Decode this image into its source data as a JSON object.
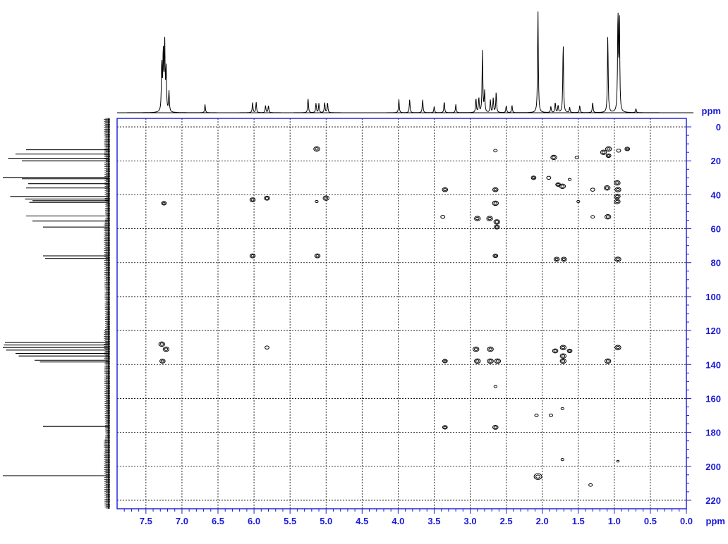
{
  "chart_data": {
    "type": "2d-nmr-hmbc",
    "x_axis": {
      "unit": "ppm",
      "range": [
        7.9,
        0.0
      ],
      "ticks": [
        "7.5",
        "7.0",
        "6.5",
        "6.0",
        "5.5",
        "5.0",
        "4.5",
        "4.0",
        "3.5",
        "3.0",
        "2.5",
        "2.0",
        "1.5",
        "1.0",
        "0.5",
        "0.0"
      ],
      "tick_values": [
        7.5,
        7.0,
        6.5,
        6.0,
        5.5,
        5.0,
        4.5,
        4.0,
        3.5,
        3.0,
        2.5,
        2.0,
        1.5,
        1.0,
        0.5,
        0.0
      ],
      "direction": "reversed"
    },
    "y_axis": {
      "unit": "ppm",
      "range": [
        -5,
        225
      ],
      "ticks": [
        "0",
        "20",
        "40",
        "60",
        "80",
        "100",
        "120",
        "140",
        "160",
        "180",
        "200",
        "220"
      ],
      "tick_values": [
        0,
        20,
        40,
        60,
        80,
        100,
        120,
        140,
        160,
        180,
        200,
        220
      ],
      "direction": "top-to-bottom"
    },
    "grid": true,
    "colors": {
      "axis": "#1a1ad6",
      "data": "#000000",
      "grid": "#000000"
    },
    "proton_projection": [
      {
        "ppm": 7.28,
        "h": 0.48
      },
      {
        "ppm": 7.26,
        "h": 0.58
      },
      {
        "ppm": 7.24,
        "h": 0.68
      },
      {
        "ppm": 7.22,
        "h": 0.42
      },
      {
        "ppm": 7.18,
        "h": 0.2
      },
      {
        "ppm": 6.68,
        "h": 0.08
      },
      {
        "ppm": 6.02,
        "h": 0.1
      },
      {
        "ppm": 5.97,
        "h": 0.1
      },
      {
        "ppm": 5.84,
        "h": 0.07
      },
      {
        "ppm": 5.8,
        "h": 0.07
      },
      {
        "ppm": 5.25,
        "h": 0.14
      },
      {
        "ppm": 5.14,
        "h": 0.09
      },
      {
        "ppm": 5.1,
        "h": 0.09
      },
      {
        "ppm": 5.02,
        "h": 0.1
      },
      {
        "ppm": 4.98,
        "h": 0.1
      },
      {
        "ppm": 3.99,
        "h": 0.13
      },
      {
        "ppm": 3.84,
        "h": 0.13
      },
      {
        "ppm": 3.66,
        "h": 0.13
      },
      {
        "ppm": 3.5,
        "h": 0.06
      },
      {
        "ppm": 3.36,
        "h": 0.11
      },
      {
        "ppm": 3.2,
        "h": 0.08
      },
      {
        "ppm": 2.92,
        "h": 0.14
      },
      {
        "ppm": 2.88,
        "h": 0.14
      },
      {
        "ppm": 2.83,
        "h": 0.6
      },
      {
        "ppm": 2.8,
        "h": 0.2
      },
      {
        "ppm": 2.72,
        "h": 0.12
      },
      {
        "ppm": 2.68,
        "h": 0.14
      },
      {
        "ppm": 2.64,
        "h": 0.2
      },
      {
        "ppm": 2.5,
        "h": 0.07
      },
      {
        "ppm": 2.42,
        "h": 0.07
      },
      {
        "ppm": 2.06,
        "h": 1.0
      },
      {
        "ppm": 1.88,
        "h": 0.06
      },
      {
        "ppm": 1.82,
        "h": 0.1
      },
      {
        "ppm": 1.78,
        "h": 0.07
      },
      {
        "ppm": 1.71,
        "h": 0.68
      },
      {
        "ppm": 1.62,
        "h": 0.05
      },
      {
        "ppm": 1.48,
        "h": 0.07
      },
      {
        "ppm": 1.3,
        "h": 0.1
      },
      {
        "ppm": 1.09,
        "h": 0.75
      },
      {
        "ppm": 0.95,
        "h": 0.96
      },
      {
        "ppm": 0.93,
        "h": 0.94
      },
      {
        "ppm": 0.7,
        "h": 0.04
      }
    ],
    "carbon_projection": [
      {
        "ppm": 13.5,
        "h": 0.78
      },
      {
        "ppm": 16.0,
        "h": 0.88
      },
      {
        "ppm": 18.5,
        "h": 0.95
      },
      {
        "ppm": 20.0,
        "h": 0.82
      },
      {
        "ppm": 29.8,
        "h": 1.0
      },
      {
        "ppm": 30.6,
        "h": 0.82
      },
      {
        "ppm": 33.5,
        "h": 0.76
      },
      {
        "ppm": 36.0,
        "h": 0.78
      },
      {
        "ppm": 41.0,
        "h": 0.93
      },
      {
        "ppm": 42.5,
        "h": 0.79
      },
      {
        "ppm": 43.5,
        "h": 0.72
      },
      {
        "ppm": 44.5,
        "h": 0.75
      },
      {
        "ppm": 52.5,
        "h": 0.78
      },
      {
        "ppm": 55.5,
        "h": 0.72
      },
      {
        "ppm": 59.0,
        "h": 0.62
      },
      {
        "ppm": 76.0,
        "h": 0.62
      },
      {
        "ppm": 77.5,
        "h": 0.6
      },
      {
        "ppm": 127.0,
        "h": 0.98
      },
      {
        "ppm": 128.5,
        "h": 0.99
      },
      {
        "ppm": 130.0,
        "h": 1.0
      },
      {
        "ppm": 131.5,
        "h": 0.97
      },
      {
        "ppm": 133.5,
        "h": 0.88
      },
      {
        "ppm": 135.0,
        "h": 0.85
      },
      {
        "ppm": 137.5,
        "h": 0.7
      },
      {
        "ppm": 138.5,
        "h": 0.65
      },
      {
        "ppm": 176.5,
        "h": 0.62
      },
      {
        "ppm": 205.5,
        "h": 1.0
      }
    ],
    "cross_peaks": [
      {
        "x": 5.13,
        "y": 13,
        "s": 1
      },
      {
        "x": 2.65,
        "y": 14,
        "s": 0.6
      },
      {
        "x": 1.84,
        "y": 18,
        "s": 1
      },
      {
        "x": 1.15,
        "y": 15,
        "s": 1
      },
      {
        "x": 1.08,
        "y": 13,
        "s": 1
      },
      {
        "x": 1.08,
        "y": 17,
        "s": 0.8
      },
      {
        "x": 0.94,
        "y": 14,
        "s": 0.7
      },
      {
        "x": 0.82,
        "y": 13,
        "s": 0.8
      },
      {
        "x": 1.52,
        "y": 18,
        "s": 0.6
      },
      {
        "x": 2.12,
        "y": 30,
        "s": 0.8
      },
      {
        "x": 1.91,
        "y": 30,
        "s": 0.7
      },
      {
        "x": 1.78,
        "y": 34,
        "s": 0.8
      },
      {
        "x": 1.72,
        "y": 35,
        "s": 1
      },
      {
        "x": 1.62,
        "y": 31,
        "s": 0.5
      },
      {
        "x": 1.3,
        "y": 37,
        "s": 0.7
      },
      {
        "x": 1.1,
        "y": 36,
        "s": 1
      },
      {
        "x": 0.96,
        "y": 33,
        "s": 1
      },
      {
        "x": 0.95,
        "y": 37,
        "s": 1
      },
      {
        "x": 0.96,
        "y": 41,
        "s": 1
      },
      {
        "x": 0.96,
        "y": 44,
        "s": 1
      },
      {
        "x": 3.35,
        "y": 37,
        "s": 0.9
      },
      {
        "x": 2.65,
        "y": 37,
        "s": 0.9
      },
      {
        "x": 2.65,
        "y": 45,
        "s": 1
      },
      {
        "x": 7.25,
        "y": 45,
        "s": 0.8
      },
      {
        "x": 6.02,
        "y": 43,
        "s": 0.9
      },
      {
        "x": 5.82,
        "y": 42,
        "s": 0.9
      },
      {
        "x": 5.0,
        "y": 42,
        "s": 1
      },
      {
        "x": 5.13,
        "y": 44,
        "s": 0.5
      },
      {
        "x": 1.5,
        "y": 44,
        "s": 0.5
      },
      {
        "x": 3.38,
        "y": 53,
        "s": 0.7
      },
      {
        "x": 2.9,
        "y": 54,
        "s": 1
      },
      {
        "x": 2.73,
        "y": 54,
        "s": 1
      },
      {
        "x": 2.63,
        "y": 56,
        "s": 1
      },
      {
        "x": 2.63,
        "y": 59,
        "s": 0.9
      },
      {
        "x": 1.09,
        "y": 53,
        "s": 1
      },
      {
        "x": 1.3,
        "y": 53,
        "s": 0.6
      },
      {
        "x": 6.02,
        "y": 76,
        "s": 0.9
      },
      {
        "x": 5.12,
        "y": 76,
        "s": 0.9
      },
      {
        "x": 2.65,
        "y": 76,
        "s": 0.8
      },
      {
        "x": 1.8,
        "y": 78,
        "s": 0.9
      },
      {
        "x": 1.7,
        "y": 78,
        "s": 0.9
      },
      {
        "x": 0.95,
        "y": 78,
        "s": 1
      },
      {
        "x": 7.28,
        "y": 128,
        "s": 1
      },
      {
        "x": 7.22,
        "y": 131,
        "s": 1
      },
      {
        "x": 7.27,
        "y": 138,
        "s": 0.9
      },
      {
        "x": 5.82,
        "y": 130,
        "s": 0.7
      },
      {
        "x": 2.92,
        "y": 131,
        "s": 1
      },
      {
        "x": 2.72,
        "y": 131,
        "s": 1
      },
      {
        "x": 2.9,
        "y": 138,
        "s": 1
      },
      {
        "x": 2.72,
        "y": 138,
        "s": 1
      },
      {
        "x": 2.62,
        "y": 138,
        "s": 1
      },
      {
        "x": 3.35,
        "y": 138,
        "s": 0.8
      },
      {
        "x": 1.82,
        "y": 132,
        "s": 0.9
      },
      {
        "x": 1.71,
        "y": 130,
        "s": 1
      },
      {
        "x": 1.71,
        "y": 135,
        "s": 1
      },
      {
        "x": 1.71,
        "y": 138,
        "s": 1
      },
      {
        "x": 1.62,
        "y": 132,
        "s": 0.8
      },
      {
        "x": 1.09,
        "y": 138,
        "s": 1
      },
      {
        "x": 0.95,
        "y": 130,
        "s": 1
      },
      {
        "x": 2.65,
        "y": 153,
        "s": 0.5
      },
      {
        "x": 1.72,
        "y": 166,
        "s": 0.5
      },
      {
        "x": 2.08,
        "y": 170,
        "s": 0.6
      },
      {
        "x": 1.88,
        "y": 170,
        "s": 0.6
      },
      {
        "x": 3.35,
        "y": 177,
        "s": 0.8
      },
      {
        "x": 2.65,
        "y": 177,
        "s": 0.9
      },
      {
        "x": 1.72,
        "y": 196,
        "s": 0.5
      },
      {
        "x": 2.06,
        "y": 206,
        "s": 1.3
      },
      {
        "x": 1.33,
        "y": 211,
        "s": 0.6
      },
      {
        "x": 0.95,
        "y": 197,
        "s": 0.4
      }
    ]
  }
}
